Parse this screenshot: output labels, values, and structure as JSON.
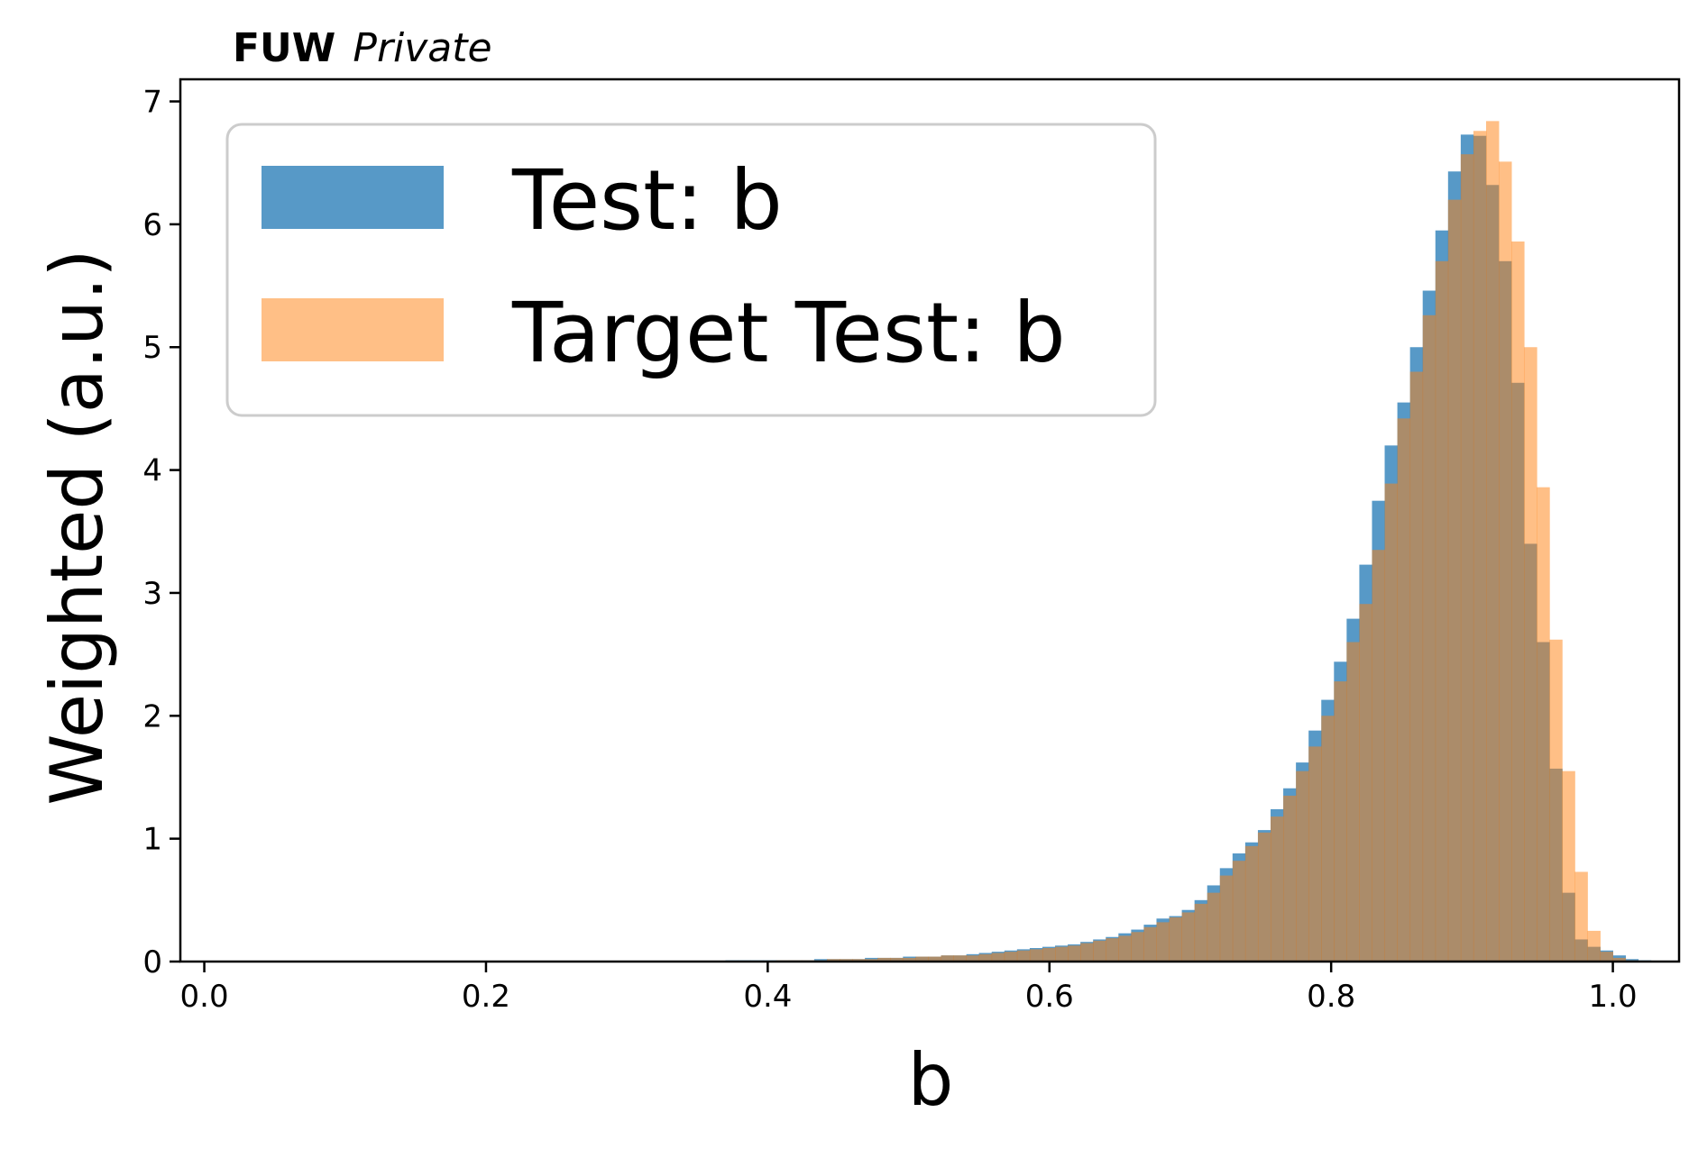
{
  "chart_data": {
    "type": "bar",
    "header": {
      "brand": "FUW",
      "subtitle": "Private"
    },
    "title": "",
    "xlabel": "b",
    "ylabel": "Weighted (a.u.)",
    "xlim": [
      -0.017,
      1.047
    ],
    "ylim": [
      0,
      7.18
    ],
    "xticks": [
      0.0,
      0.2,
      0.4,
      0.6,
      0.8,
      1.0
    ],
    "xtick_labels": [
      "0.0",
      "0.2",
      "0.4",
      "0.6",
      "0.8",
      "1.0"
    ],
    "yticks": [
      0,
      1,
      2,
      3,
      4,
      5,
      6,
      7
    ],
    "ytick_labels": [
      "0",
      "1",
      "2",
      "3",
      "4",
      "5",
      "6",
      "7"
    ],
    "legend_position": "top-left",
    "grid": false,
    "bin_start": 0.37,
    "bin_width": 0.009,
    "series": [
      {
        "name": "Test: b",
        "color": "#1f77b4",
        "opacity": 0.75,
        "values": [
          0.01,
          0.01,
          0.01,
          0.01,
          0.01,
          0.01,
          0.01,
          0.02,
          0.02,
          0.02,
          0.02,
          0.03,
          0.03,
          0.03,
          0.04,
          0.04,
          0.04,
          0.05,
          0.05,
          0.06,
          0.07,
          0.08,
          0.09,
          0.1,
          0.11,
          0.12,
          0.13,
          0.14,
          0.16,
          0.18,
          0.2,
          0.23,
          0.26,
          0.3,
          0.35,
          0.37,
          0.42,
          0.5,
          0.62,
          0.76,
          0.88,
          0.97,
          1.07,
          1.24,
          1.41,
          1.62,
          1.88,
          2.13,
          2.44,
          2.79,
          3.23,
          3.75,
          4.2,
          4.55,
          5.0,
          5.46,
          5.95,
          6.43,
          6.73,
          6.72,
          6.32,
          5.7,
          4.71,
          3.4,
          2.6,
          1.57,
          0.56,
          0.18,
          0.12,
          0.09,
          0.05,
          0.02,
          0.01,
          0.005
        ]
      },
      {
        "name": "Target Test: b",
        "color": "#ff7f0e",
        "opacity": 0.5,
        "values": [
          0.005,
          0.005,
          0.005,
          0.005,
          0.01,
          0.01,
          0.01,
          0.01,
          0.02,
          0.02,
          0.02,
          0.02,
          0.03,
          0.03,
          0.03,
          0.04,
          0.04,
          0.05,
          0.05,
          0.05,
          0.06,
          0.07,
          0.08,
          0.09,
          0.1,
          0.11,
          0.12,
          0.13,
          0.15,
          0.17,
          0.19,
          0.21,
          0.24,
          0.28,
          0.32,
          0.36,
          0.4,
          0.47,
          0.56,
          0.7,
          0.82,
          0.94,
          1.05,
          1.18,
          1.35,
          1.55,
          1.75,
          2.0,
          2.28,
          2.6,
          2.91,
          3.35,
          3.89,
          4.42,
          4.8,
          5.26,
          5.7,
          6.2,
          6.57,
          6.76,
          6.84,
          6.51,
          5.86,
          5.0,
          3.86,
          2.62,
          1.55,
          0.73,
          0.25,
          0.08,
          0.03,
          0.01,
          0.005,
          0.002
        ]
      }
    ]
  }
}
